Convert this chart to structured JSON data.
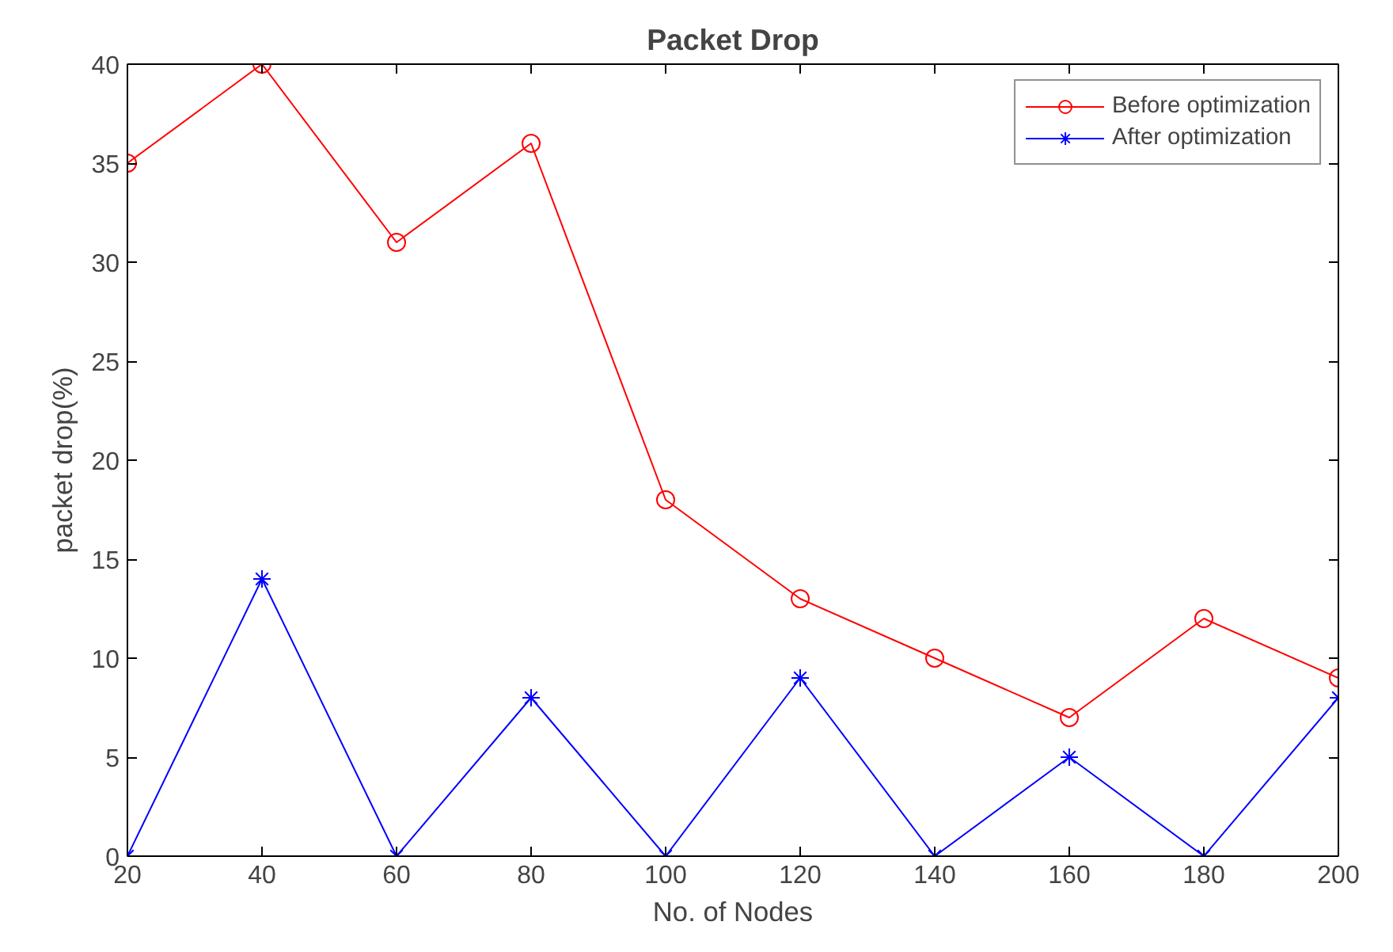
{
  "chart_data": {
    "type": "line",
    "title": "Packet Drop",
    "xlabel": "No. of Nodes",
    "ylabel": "packet drop(%)",
    "x": [
      20,
      40,
      60,
      80,
      100,
      120,
      140,
      160,
      180,
      200
    ],
    "series": [
      {
        "name": "Before optimization",
        "color": "#ff0000",
        "marker": "circle",
        "values": [
          35,
          40,
          31,
          36,
          18,
          13,
          10,
          7,
          12,
          9
        ]
      },
      {
        "name": "After optimization",
        "color": "#0000ff",
        "marker": "cross",
        "values": [
          0,
          14,
          0,
          8,
          0,
          9,
          0,
          5,
          0,
          8
        ]
      }
    ],
    "xlim": [
      20,
      200
    ],
    "xticks": [
      20,
      40,
      60,
      80,
      100,
      120,
      140,
      160,
      180,
      200
    ],
    "ylim": [
      0,
      40
    ],
    "yticks": [
      0,
      5,
      10,
      15,
      20,
      25,
      30,
      35,
      40
    ],
    "grid": false,
    "legend": "top right",
    "line_style": "solid"
  }
}
